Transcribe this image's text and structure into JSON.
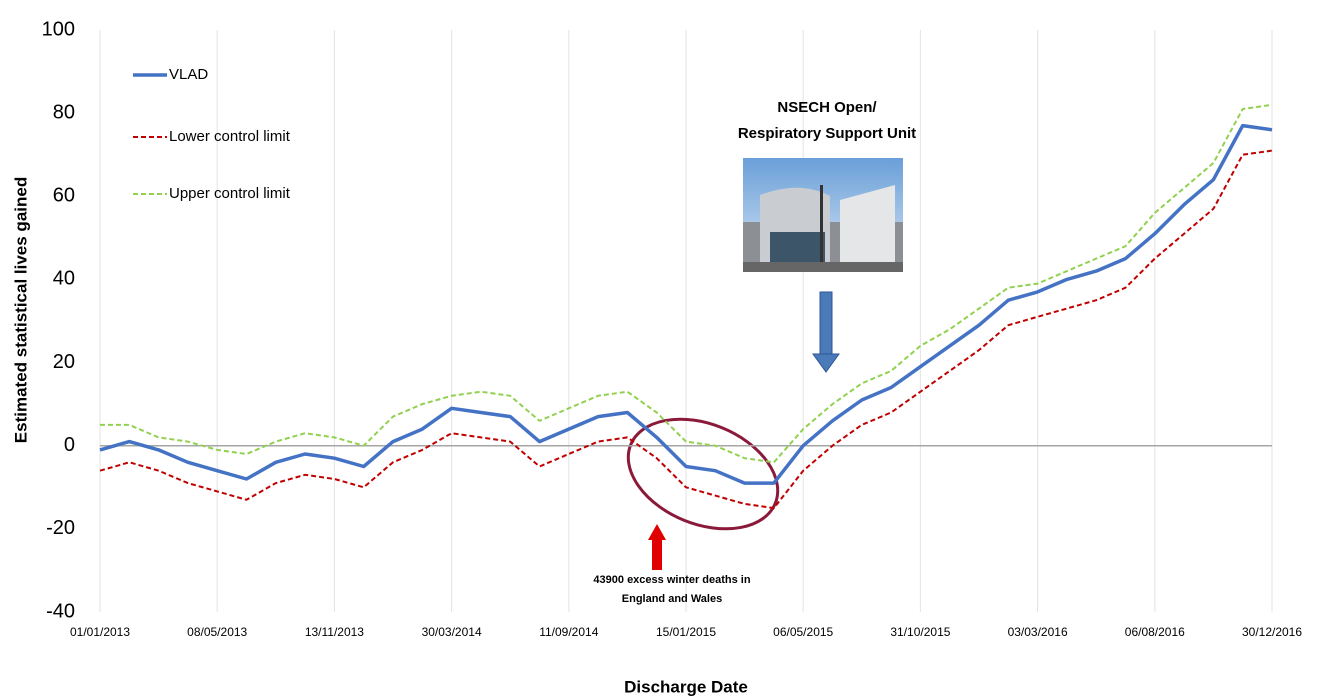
{
  "chart_data": {
    "type": "line",
    "y_label": "Estimated statistical lives gained",
    "x_label": "Discharge Date",
    "categories": [
      "01/01/2013",
      null,
      null,
      null,
      "08/05/2013",
      null,
      null,
      null,
      "13/11/2013",
      null,
      null,
      null,
      "30/03/2014",
      null,
      null,
      null,
      "11/09/2014",
      null,
      null,
      null,
      "15/01/2015",
      null,
      null,
      null,
      "06/05/2015",
      null,
      null,
      null,
      "31/10/2015",
      null,
      null,
      null,
      "03/03/2016",
      null,
      null,
      null,
      "06/08/2016",
      null,
      null,
      null,
      "30/12/2016"
    ],
    "series": [
      {
        "name": "VLAD",
        "color": "#4472c4",
        "dash": false,
        "values": [
          -1,
          1,
          -1,
          -4,
          -6,
          -8,
          -4,
          -2,
          -3,
          -5,
          1,
          4,
          9,
          8,
          7,
          1,
          4,
          7,
          8,
          2,
          -5,
          -6,
          -9,
          -9,
          0,
          6,
          11,
          14,
          19,
          24,
          29,
          35,
          37,
          40,
          42,
          45,
          51,
          58,
          64,
          77,
          76
        ]
      },
      {
        "name": "Lower control limit",
        "color": "#c00000",
        "dash": true,
        "values": [
          -6,
          -4,
          -6,
          -9,
          -11,
          -13,
          -9,
          -7,
          -8,
          -10,
          -4,
          -1,
          3,
          2,
          1,
          -5,
          -2,
          1,
          2,
          -3,
          -10,
          -12,
          -14,
          -15,
          -6,
          0,
          5,
          8,
          13,
          18,
          23,
          29,
          31,
          33,
          35,
          38,
          45,
          51,
          57,
          70,
          71
        ]
      },
      {
        "name": "Upper control limit",
        "color": "#92d050",
        "dash": true,
        "values": [
          5,
          5,
          2,
          1,
          -1,
          -2,
          1,
          3,
          2,
          0,
          7,
          10,
          12,
          13,
          12,
          6,
          9,
          12,
          13,
          8,
          1,
          0,
          -3,
          -4,
          4,
          10,
          15,
          18,
          24,
          28,
          33,
          38,
          39,
          42,
          45,
          48,
          56,
          62,
          68,
          81,
          82
        ]
      }
    ],
    "ylim": [
      -40,
      100
    ],
    "yticks": [
      -40,
      -20,
      0,
      20,
      40,
      60,
      80,
      100
    ],
    "legend": "top-left",
    "annotations": [
      {
        "lines": [
          "NSECH Open/",
          "Respiratory Support Unit"
        ]
      },
      {
        "lines": [
          "43900 excess winter deaths in",
          "England and Wales"
        ]
      }
    ]
  }
}
